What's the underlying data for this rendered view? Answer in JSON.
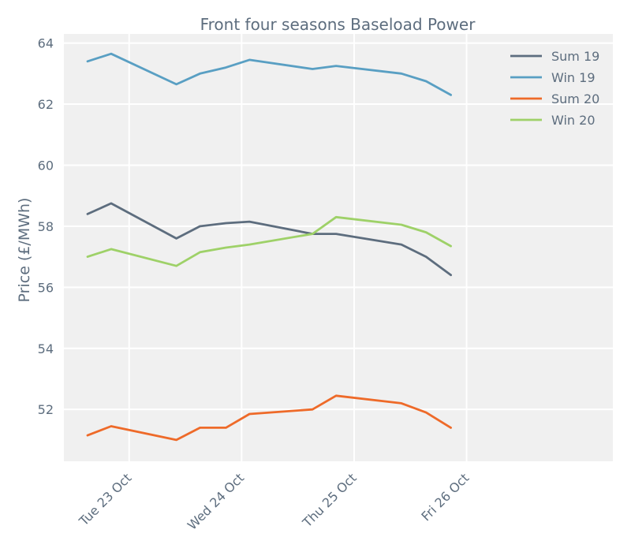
{
  "chart_data": {
    "type": "line",
    "title": "Front four seasons Baseload Power",
    "xlabel": "",
    "ylabel": "Price (£/MWh)",
    "ylim": [
      50.3,
      64.3
    ],
    "yticks": [
      52,
      54,
      56,
      58,
      60,
      62,
      64
    ],
    "xlim": [
      22.0,
      26.88
    ],
    "xticks": [
      {
        "x": 22.58,
        "label": "Tue 23 Oct"
      },
      {
        "x": 23.58,
        "label": "Wed 24 Oct"
      },
      {
        "x": 24.58,
        "label": "Thu 25 Oct"
      },
      {
        "x": 25.58,
        "label": "Fri 26 Oct"
      }
    ],
    "grid": true,
    "legend_position": "top-right",
    "x": [
      22.21,
      22.42,
      23.0,
      23.21,
      23.44,
      23.65,
      24.21,
      24.42,
      25.0,
      25.22,
      25.44
    ],
    "series": [
      {
        "name": "Sum 19",
        "color": "#5d6d7e",
        "values": [
          58.4,
          58.75,
          57.6,
          58.0,
          58.1,
          58.15,
          57.75,
          57.75,
          57.4,
          57.0,
          56.4
        ]
      },
      {
        "name": "Win 19",
        "color": "#599fc3",
        "values": [
          63.4,
          63.65,
          62.65,
          63.0,
          63.2,
          63.45,
          63.15,
          63.25,
          63.0,
          62.75,
          62.3
        ]
      },
      {
        "name": "Sum 20",
        "color": "#ee6a29",
        "values": [
          51.15,
          51.45,
          51.0,
          51.4,
          51.4,
          51.85,
          52.0,
          52.45,
          52.2,
          51.9,
          51.4
        ]
      },
      {
        "name": "Win 20",
        "color": "#9ed168",
        "values": [
          57.0,
          57.25,
          56.7,
          57.15,
          57.3,
          57.4,
          57.75,
          58.3,
          58.05,
          57.8,
          57.35
        ]
      }
    ]
  }
}
